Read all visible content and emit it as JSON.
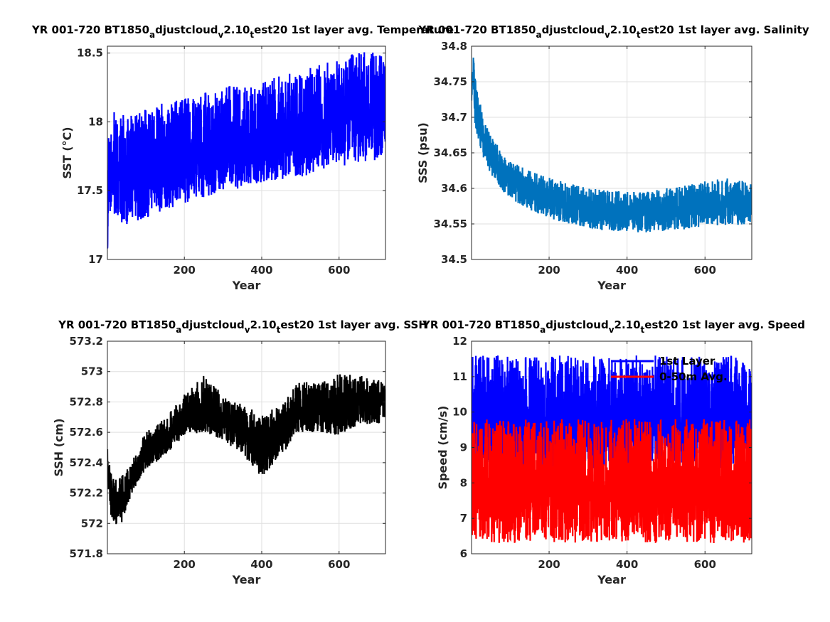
{
  "chart_data": [
    {
      "type": "line",
      "title": "YR 001-720 BT1850_adjustcloud_v2.10_test20 1st layer avg. Temperature",
      "xlabel": "Year",
      "ylabel": "SST (°C)",
      "xlim": [
        1,
        720
      ],
      "ylim": [
        17,
        18.55
      ],
      "xticks": [
        200,
        400,
        600
      ],
      "yticks": [
        17,
        17.5,
        18,
        18.5
      ],
      "grid": true,
      "series": [
        {
          "color": "#0000ff",
          "x": [
            1,
            5,
            15,
            30,
            50,
            75,
            100,
            150,
            200,
            250,
            300,
            350,
            400,
            450,
            500,
            550,
            600,
            650,
            700,
            720
          ],
          "y_mean": [
            17.1,
            17.6,
            17.62,
            17.62,
            17.63,
            17.65,
            17.67,
            17.7,
            17.74,
            17.77,
            17.8,
            17.83,
            17.87,
            17.9,
            17.93,
            17.96,
            18.0,
            18.04,
            18.08,
            18.1
          ],
          "y_min_env": [
            17.03,
            17.35,
            17.3,
            17.25,
            17.25,
            17.28,
            17.3,
            17.35,
            17.4,
            17.45,
            17.5,
            17.52,
            17.55,
            17.58,
            17.6,
            17.63,
            17.67,
            17.7,
            17.72,
            17.75
          ],
          "y_max_env": [
            17.8,
            17.95,
            18.15,
            18.05,
            18.05,
            18.05,
            18.1,
            18.15,
            18.2,
            18.22,
            18.25,
            18.28,
            18.3,
            18.35,
            18.38,
            18.42,
            18.45,
            18.52,
            18.5,
            18.45
          ]
        }
      ]
    },
    {
      "type": "line",
      "title": "YR 001-720 BT1850_adjustcloud_v2.10_test20 1st layer avg. Salinity",
      "xlabel": "Year",
      "ylabel": "SSS (psu)",
      "xlim": [
        1,
        720
      ],
      "ylim": [
        34.5,
        34.8
      ],
      "xticks": [
        200,
        400,
        600
      ],
      "yticks": [
        34.5,
        34.55,
        34.6,
        34.65,
        34.7,
        34.75,
        34.8
      ],
      "grid": true,
      "series": [
        {
          "color": "#0072bd",
          "x": [
            1,
            5,
            10,
            20,
            30,
            50,
            75,
            100,
            150,
            200,
            250,
            300,
            350,
            400,
            450,
            500,
            550,
            600,
            650,
            700,
            720
          ],
          "y_mean": [
            34.73,
            34.77,
            34.72,
            34.69,
            34.67,
            34.645,
            34.625,
            34.61,
            34.595,
            34.585,
            34.578,
            34.572,
            34.57,
            34.568,
            34.568,
            34.57,
            34.572,
            34.575,
            34.578,
            34.577,
            34.575
          ],
          "y_min_env": [
            34.72,
            34.75,
            34.69,
            34.66,
            34.64,
            34.62,
            34.6,
            34.585,
            34.57,
            34.558,
            34.55,
            34.543,
            34.54,
            34.538,
            34.538,
            34.54,
            34.542,
            34.545,
            34.547,
            34.548,
            34.548
          ],
          "y_max_env": [
            34.76,
            34.79,
            34.76,
            34.73,
            34.7,
            34.675,
            34.655,
            34.64,
            34.625,
            34.615,
            34.608,
            34.6,
            34.598,
            34.595,
            34.595,
            34.6,
            34.605,
            34.612,
            34.615,
            34.61,
            34.605
          ]
        }
      ]
    },
    {
      "type": "line",
      "title": "YR 001-720 BT1850_adjustcloud_v2.10_test20 1st layer avg. SSH",
      "xlabel": "Year",
      "ylabel": "SSH (cm)",
      "xlim": [
        1,
        720
      ],
      "ylim": [
        571.8,
        573.2
      ],
      "xticks": [
        200,
        400,
        600
      ],
      "yticks": [
        571.8,
        572,
        572.2,
        572.4,
        572.6,
        572.8,
        573,
        573.2
      ],
      "grid": true,
      "series": [
        {
          "color": "#000000",
          "x": [
            1,
            10,
            20,
            35,
            50,
            75,
            100,
            150,
            200,
            250,
            300,
            350,
            400,
            450,
            500,
            550,
            600,
            650,
            700,
            720
          ],
          "y_mean": [
            572.4,
            572.22,
            572.15,
            572.12,
            572.2,
            572.35,
            572.45,
            572.55,
            572.68,
            572.72,
            572.68,
            572.6,
            572.55,
            572.6,
            572.72,
            572.75,
            572.72,
            572.8,
            572.78,
            572.8
          ],
          "y_min_env": [
            572.3,
            572.05,
            572.0,
            571.98,
            572.1,
            572.25,
            572.35,
            572.45,
            572.58,
            572.6,
            572.55,
            572.45,
            572.3,
            572.45,
            572.6,
            572.6,
            572.58,
            572.65,
            572.65,
            572.7
          ],
          "y_max_env": [
            572.5,
            572.35,
            572.3,
            572.3,
            572.35,
            572.48,
            572.6,
            572.7,
            572.85,
            572.98,
            572.85,
            572.78,
            572.72,
            572.78,
            572.95,
            572.92,
            573.0,
            572.98,
            572.95,
            572.92
          ]
        }
      ]
    },
    {
      "type": "line",
      "title": "YR 001-720 BT1850_adjustcloud_v2.10_test20 1st layer avg. Speed",
      "xlabel": "Year",
      "ylabel": "Speed (cm/s)",
      "xlim": [
        1,
        720
      ],
      "ylim": [
        6,
        12
      ],
      "xticks": [
        200,
        400,
        600
      ],
      "yticks": [
        6,
        7,
        8,
        9,
        10,
        11,
        12
      ],
      "grid": true,
      "legend": {
        "placement": "top-right",
        "entries": [
          "1st Layer",
          "0-50m Avg."
        ]
      },
      "series": [
        {
          "name": "1st Layer",
          "color": "#0000ff",
          "y_mean": 9.6,
          "y_min_env": 8.4,
          "y_max_env": 11.6
        },
        {
          "name": "0-50m Avg.",
          "color": "#ff0000",
          "y_mean": 7.7,
          "y_min_env": 6.3,
          "y_max_env": 9.8
        }
      ]
    }
  ]
}
